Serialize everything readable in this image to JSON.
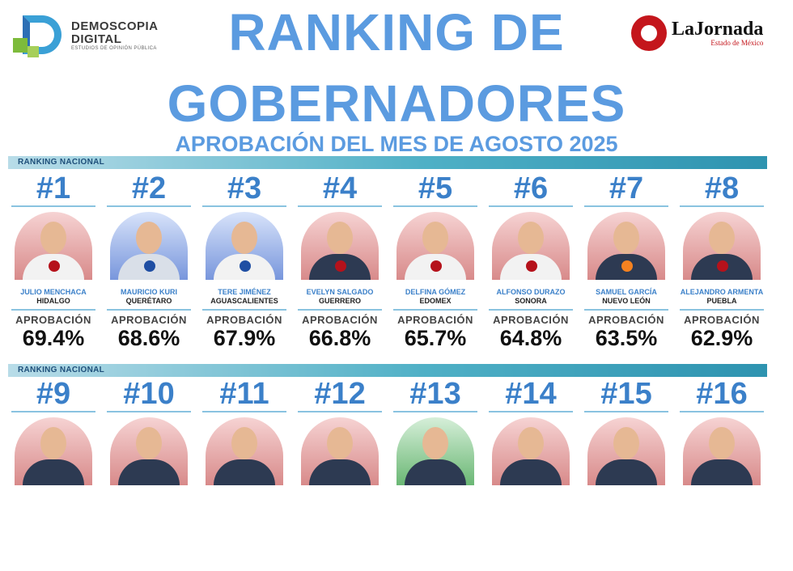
{
  "logo_left": {
    "line1": "DEMOSCOPIA",
    "line2": "DIGITAL",
    "line3": "ESTUDIOS DE OPINIÓN PÚBLICA"
  },
  "logo_right": {
    "brand": "LaJornada",
    "sub": "Estado de México"
  },
  "title": {
    "line1": "RANKING DE",
    "line2": "GOBERNADORES",
    "subtitle": "APROBACIÓN DEL MES DE AGOSTO 2025"
  },
  "section_label": "RANKING NACIONAL",
  "approval_label": "APROBACIÓN",
  "governors": [
    {
      "rank": "#1",
      "name": "JULIO MENCHACA",
      "state": "HIDALGO",
      "approval": "69.4%",
      "party": "MORENA"
    },
    {
      "rank": "#2",
      "name": "MAURICIO KURI",
      "state": "QUERÉTARO",
      "approval": "68.6%",
      "party": "PAN"
    },
    {
      "rank": "#3",
      "name": "TERE JIMÉNEZ",
      "state": "AGUASCALIENTES",
      "approval": "67.9%",
      "party": "PAN"
    },
    {
      "rank": "#4",
      "name": "EVELYN SALGADO",
      "state": "GUERRERO",
      "approval": "66.8%",
      "party": "MORENA"
    },
    {
      "rank": "#5",
      "name": "DELFINA GÓMEZ",
      "state": "EDOMEX",
      "approval": "65.7%",
      "party": "MORENA"
    },
    {
      "rank": "#6",
      "name": "ALFONSO DURAZO",
      "state": "SONORA",
      "approval": "64.8%",
      "party": "MORENA"
    },
    {
      "rank": "#7",
      "name": "SAMUEL GARCÍA",
      "state": "NUEVO LEÓN",
      "approval": "63.5%",
      "party": "MC"
    },
    {
      "rank": "#8",
      "name": "ALEJANDRO ARMENTA",
      "state": "PUEBLA",
      "approval": "62.9%",
      "party": "MORENA"
    },
    {
      "rank": "#9"
    },
    {
      "rank": "#10"
    },
    {
      "rank": "#11"
    },
    {
      "rank": "#12"
    },
    {
      "rank": "#13"
    },
    {
      "rank": "#14"
    },
    {
      "rank": "#15"
    },
    {
      "rank": "#16"
    }
  ]
}
